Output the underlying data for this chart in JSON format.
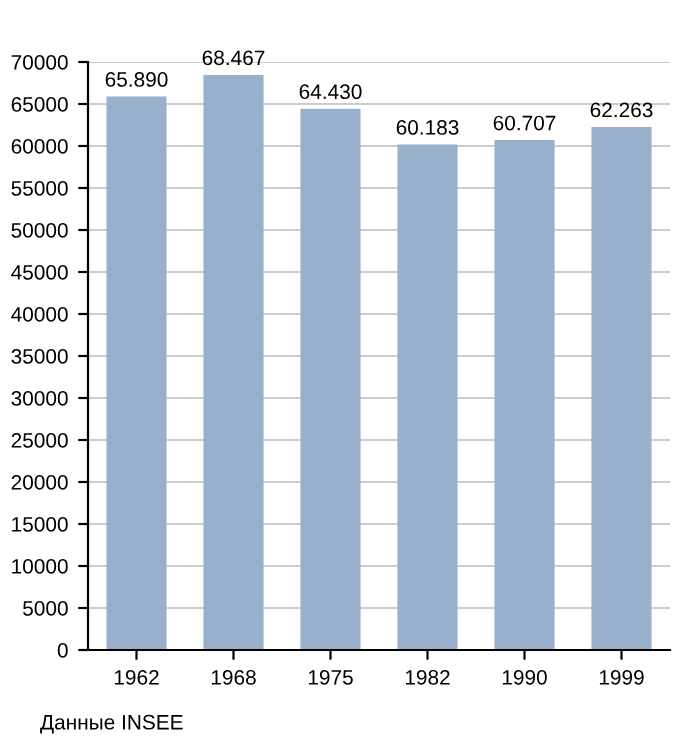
{
  "chart_data": {
    "type": "bar",
    "categories": [
      "1962",
      "1968",
      "1975",
      "1982",
      "1990",
      "1999"
    ],
    "values": [
      65890,
      68467,
      64430,
      60183,
      60707,
      62263
    ],
    "value_labels": [
      "65.890",
      "68.467",
      "64.430",
      "60.183",
      "60.707",
      "62.263"
    ],
    "color": "#98b0cc",
    "ylim": [
      0,
      70000
    ],
    "yticks": [
      0,
      5000,
      10000,
      15000,
      20000,
      25000,
      30000,
      35000,
      40000,
      45000,
      50000,
      55000,
      60000,
      65000,
      70000
    ],
    "grid": "y",
    "legend": false,
    "annotations": [
      "Данные INSEE"
    ]
  }
}
